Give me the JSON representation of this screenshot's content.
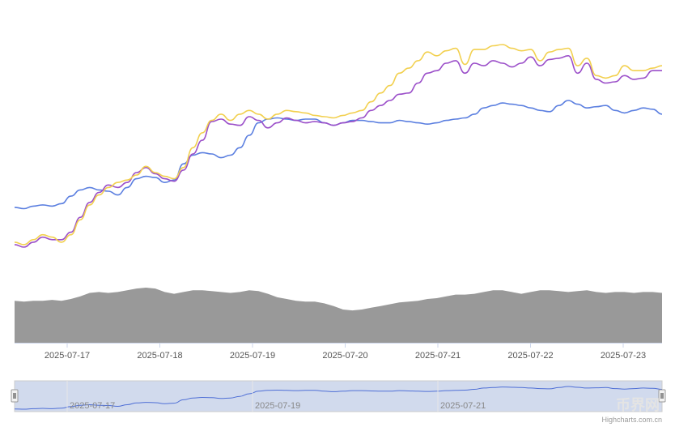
{
  "chart_data": {
    "type": "line",
    "title": "",
    "x_axis": {
      "type": "datetime",
      "tick_labels": [
        "2025-07-17",
        "2025-07-18",
        "2025-07-19",
        "2025-07-20",
        "2025-07-21",
        "2025-07-22",
        "2025-07-23"
      ]
    },
    "grid": false,
    "legend": "none",
    "series": [
      {
        "color": "#5b7fe0",
        "values": [
          70,
          69,
          71,
          72,
          71,
          73,
          79,
          84,
          86,
          84,
          83,
          80,
          86,
          93,
          95,
          94,
          90,
          92,
          105,
          112,
          114,
          113,
          110,
          112,
          118,
          128,
          138,
          141,
          142,
          141,
          140,
          141,
          141,
          138,
          136,
          138,
          140,
          140,
          139,
          138,
          138,
          140,
          139,
          138,
          137,
          138,
          140,
          141,
          142,
          145,
          150,
          152,
          154,
          153,
          152,
          150,
          148,
          147,
          152,
          156,
          153,
          150,
          151,
          152,
          148,
          146,
          148,
          150,
          149,
          145
        ]
      },
      {
        "color": "#9b4fc9",
        "values": [
          40,
          38,
          42,
          46,
          44,
          44,
          50,
          62,
          74,
          82,
          88,
          86,
          90,
          98,
          102,
          97,
          93,
          91,
          100,
          113,
          124,
          139,
          141,
          137,
          136,
          143,
          140,
          134,
          138,
          142,
          140,
          138,
          139,
          138,
          136,
          138,
          139,
          142,
          148,
          152,
          156,
          161,
          162,
          170,
          178,
          180,
          186,
          188,
          178,
          186,
          184,
          188,
          186,
          183,
          186,
          191,
          184,
          189,
          190,
          192,
          178,
          186,
          173,
          170,
          171,
          176,
          173,
          174,
          180,
          180
        ]
      },
      {
        "color": "#f2d04f",
        "values": [
          42,
          40,
          44,
          48,
          46,
          42,
          48,
          60,
          72,
          80,
          86,
          90,
          92,
          96,
          103,
          98,
          95,
          93,
          102,
          118,
          130,
          140,
          145,
          140,
          145,
          148,
          145,
          141,
          145,
          148,
          147,
          146,
          144,
          143,
          142,
          144,
          146,
          148,
          155,
          162,
          168,
          178,
          182,
          188,
          195,
          192,
          196,
          198,
          185,
          197,
          197,
          200,
          201,
          198,
          196,
          197,
          188,
          195,
          197,
          198,
          184,
          190,
          176,
          174,
          176,
          184,
          180,
          180,
          182,
          184
        ]
      }
    ],
    "volume": {
      "color": "#999999",
      "values": [
        48,
        47,
        48,
        48,
        49,
        48,
        50,
        53,
        57,
        58,
        57,
        58,
        60,
        62,
        63,
        62,
        58,
        56,
        58,
        60,
        60,
        59,
        58,
        57,
        58,
        60,
        59,
        56,
        52,
        50,
        48,
        47,
        47,
        45,
        42,
        38,
        37,
        38,
        40,
        42,
        44,
        46,
        47,
        48,
        50,
        51,
        53,
        55,
        55,
        56,
        58,
        60,
        60,
        58,
        56,
        58,
        60,
        60,
        59,
        58,
        59,
        60,
        58,
        57,
        58,
        58,
        57,
        58,
        58,
        57
      ]
    },
    "navigator": {
      "tick_labels": [
        "2025-07-17",
        "2025-07-19",
        "2025-07-21"
      ]
    }
  },
  "credits": "Highcharts.com.cn",
  "watermark": "币界网"
}
